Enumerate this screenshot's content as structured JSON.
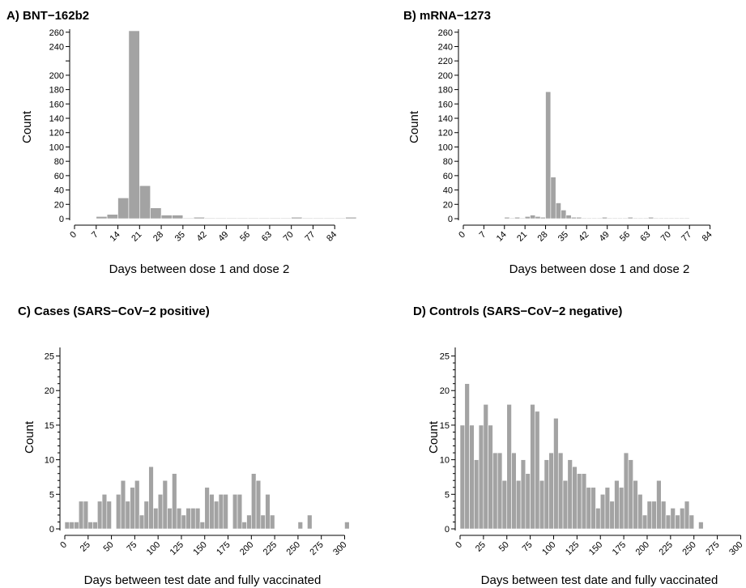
{
  "colors": {
    "bar": "#a3a3a3",
    "axis": "#000000",
    "background": "#ffffff"
  },
  "chart_data": [
    {
      "id": "A",
      "type": "bar",
      "title": "A) BNT−162b2",
      "xlabel": "Days between dose 1 and dose 2",
      "ylabel": "Count",
      "xlim": [
        0,
        91
      ],
      "ylim": [
        0,
        262
      ],
      "xticks": [
        0,
        7,
        14,
        21,
        28,
        35,
        42,
        49,
        56,
        63,
        70,
        77,
        84
      ],
      "yticks": [
        0,
        20,
        40,
        60,
        80,
        100,
        120,
        140,
        160,
        180,
        200,
        240,
        260
      ],
      "yticks_all": [
        0,
        20,
        40,
        60,
        80,
        100,
        120,
        140,
        160,
        180,
        200,
        220,
        240,
        260
      ],
      "bin_edges": [
        7,
        10.5,
        14,
        17.5,
        21,
        24.5,
        28,
        31.5,
        35,
        38.5,
        42,
        45.5,
        49,
        52.5,
        56,
        59.5,
        63,
        66.5,
        70,
        73.5,
        77,
        80.5,
        84,
        87.5,
        91
      ],
      "values": [
        3,
        6,
        29,
        262,
        46,
        15,
        5,
        5,
        1,
        2,
        1,
        1,
        1,
        1,
        1,
        1,
        1,
        1,
        2,
        1,
        1,
        1,
        1,
        2
      ]
    },
    {
      "id": "B",
      "type": "bar",
      "title": "B) mRNA−1273",
      "xlabel": "Days between dose 1 and dose 2",
      "ylabel": "Count",
      "xlim": [
        0,
        91
      ],
      "ylim": [
        0,
        262
      ],
      "xticks": [
        0,
        7,
        14,
        21,
        28,
        35,
        42,
        49,
        56,
        63,
        70,
        77,
        84
      ],
      "yticks": [
        0,
        20,
        40,
        60,
        80,
        100,
        120,
        140,
        160,
        180,
        200,
        220,
        240,
        260
      ],
      "bin_edges": [
        14,
        15.75,
        17.5,
        19.25,
        21,
        22.75,
        24.5,
        26.25,
        28,
        29.75,
        31.5,
        33.25,
        35,
        36.75,
        38.5,
        40.25,
        42,
        43.75,
        45.5,
        47.25,
        49,
        50.75,
        52.5,
        54.25,
        56,
        57.75,
        59.5,
        61.25,
        63,
        64.75,
        66.5,
        68.25,
        70,
        71.75,
        73.5,
        75.25,
        77
      ],
      "values": [
        2,
        1,
        2,
        1,
        3,
        5,
        3,
        2,
        177,
        58,
        22,
        12,
        5,
        2,
        2,
        1,
        1,
        1,
        1,
        2,
        1,
        1,
        1,
        1,
        2,
        1,
        1,
        1,
        2,
        1,
        1,
        1,
        1,
        1,
        1,
        1
      ]
    },
    {
      "id": "C",
      "type": "bar",
      "title": "C) Cases (SARS−CoV−2 positive)",
      "xlabel": "Days between test date and fully vaccinated",
      "ylabel": "Count",
      "xlim": [
        0,
        310
      ],
      "ylim": [
        0,
        26
      ],
      "xticks": [
        0,
        25,
        50,
        75,
        100,
        125,
        150,
        175,
        200,
        225,
        250,
        275,
        300
      ],
      "yticks": [
        0,
        5,
        10,
        15,
        20,
        25
      ],
      "bin_width": 5,
      "bin_start": 0,
      "values": [
        1,
        1,
        1,
        4,
        4,
        1,
        1,
        4,
        5,
        4,
        0,
        5,
        7,
        4,
        6,
        7,
        2,
        4,
        9,
        3,
        5,
        7,
        3,
        8,
        3,
        2,
        3,
        3,
        3,
        1,
        6,
        5,
        4,
        5,
        5,
        0,
        5,
        5,
        1,
        2,
        8,
        7,
        2,
        5,
        2,
        0,
        0,
        0,
        0,
        0,
        1,
        0,
        2,
        0,
        0,
        0,
        0,
        0,
        0,
        0,
        1
      ]
    },
    {
      "id": "D",
      "type": "bar",
      "title": "D) Controls (SARS−CoV−2 negative)",
      "xlabel": "Days between test date and fully vaccinated",
      "ylabel": "Count",
      "xlim": [
        0,
        310
      ],
      "ylim": [
        0,
        26
      ],
      "xticks": [
        0,
        25,
        50,
        75,
        100,
        125,
        150,
        175,
        200,
        225,
        250,
        275,
        300
      ],
      "yticks": [
        0,
        5,
        10,
        15,
        20,
        25
      ],
      "bin_width": 5,
      "bin_start": 0,
      "values": [
        15,
        21,
        15,
        10,
        15,
        18,
        15,
        11,
        11,
        7,
        18,
        11,
        7,
        10,
        8,
        18,
        17,
        7,
        10,
        11,
        16,
        11,
        7,
        10,
        9,
        8,
        8,
        6,
        6,
        3,
        5,
        6,
        4,
        7,
        6,
        11,
        10,
        7,
        5,
        2,
        4,
        4,
        7,
        4,
        2,
        3,
        2,
        3,
        4,
        2,
        0,
        1,
        0,
        0,
        0,
        0,
        0,
        0,
        0,
        0
      ]
    }
  ]
}
